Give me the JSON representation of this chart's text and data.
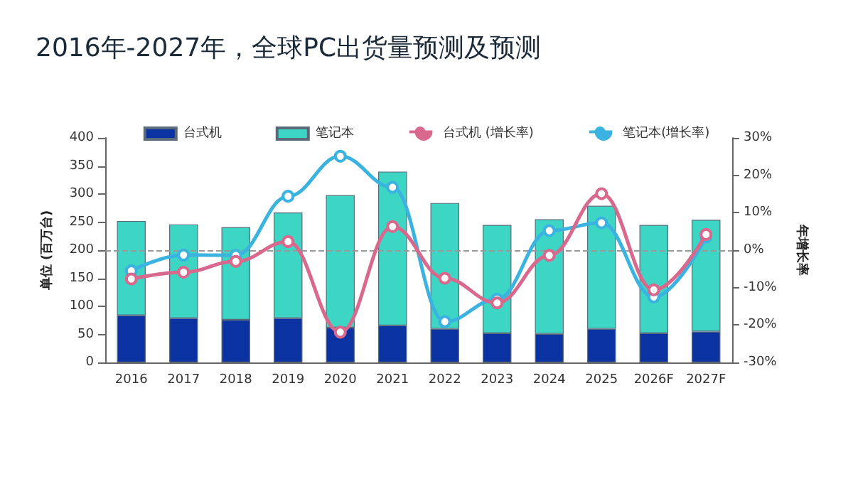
{
  "chart_data": {
    "type": "bar",
    "title": "2016年-2027年，全球PC出货量预测及预测",
    "ylabel": "单位 (百万台)",
    "y2label": "年增长率",
    "categories": [
      "2016",
      "2017",
      "2018",
      "2019",
      "2020",
      "2021",
      "2022",
      "2023",
      "2024",
      "2025",
      "2026F",
      "2027F"
    ],
    "stacked": true,
    "series": [
      {
        "name": "台式机",
        "color": "#0a32a0",
        "values": [
          84,
          79,
          76,
          79,
          62,
          66,
          60,
          52,
          51,
          60,
          52,
          55
        ]
      },
      {
        "name": "笔记本",
        "color": "#3dd6c4",
        "values": [
          168,
          167,
          165,
          188,
          236,
          274,
          224,
          193,
          204,
          219,
          193,
          199
        ]
      },
      {
        "name": "台式机 (增长率)",
        "type": "line",
        "axis": "y2",
        "color": "#d9698c",
        "values": [
          -7.7,
          -5.9,
          -3.0,
          2.3,
          -21.9,
          6.3,
          -7.5,
          -14.1,
          -1.4,
          15.1,
          -10.6,
          4.2
        ]
      },
      {
        "name": "笔记本(增长率)",
        "type": "line",
        "axis": "y2",
        "color": "#3bb3e0",
        "values": [
          -5.5,
          -1.3,
          -1.4,
          14.4,
          25.1,
          16.8,
          -19.1,
          -13.1,
          5.2,
          7.3,
          -12.5,
          3.5
        ]
      }
    ],
    "ylim": [
      0,
      400
    ],
    "yticks": [
      0,
      50,
      100,
      150,
      200,
      250,
      300,
      350,
      400
    ],
    "y2lim": [
      -30,
      30
    ],
    "y2ticks": [
      {
        "value": -30,
        "label": "-30%"
      },
      {
        "value": -20,
        "label": "-20%"
      },
      {
        "value": -10,
        "label": "-10%"
      },
      {
        "value": 0,
        "label": "0%"
      },
      {
        "value": 10,
        "label": "10%"
      },
      {
        "value": 20,
        "label": "20%"
      },
      {
        "value": 30,
        "label": "30%"
      }
    ],
    "ref_lines": [
      {
        "axis": "y2",
        "value": 0,
        "color": "#999999",
        "line_style": "dashed"
      }
    ],
    "legend": "top",
    "grid": false,
    "marker": "circle"
  }
}
